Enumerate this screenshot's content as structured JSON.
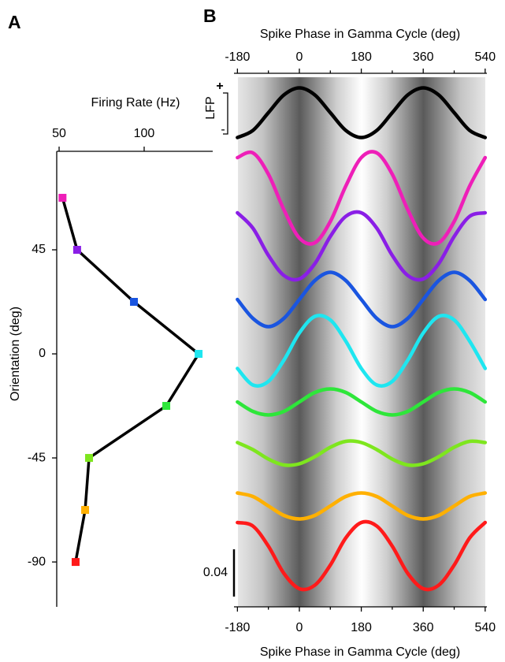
{
  "chart_data": [
    {
      "type": "line",
      "panel_label": "A",
      "xlabel": "Firing Rate (Hz)",
      "ylabel": "Orientation (deg)",
      "x": [
        52,
        60.6,
        94,
        132,
        113,
        67.6,
        65.3,
        59.7
      ],
      "values": [
        67.5,
        45,
        22.5,
        0,
        -22.5,
        -45,
        -67.5,
        -90
      ],
      "color": "#000000",
      "marker_colors": [
        "#ee1fb8",
        "#8a1ee6",
        "#1a55e0",
        "#1ee6f0",
        "#2ee63a",
        "#7ee61e",
        "#ffb000",
        "#ff1a1a"
      ],
      "xlim": [
        48.6,
        140.3
      ],
      "xticks": [
        50,
        100
      ],
      "ylim": [
        -109.4,
        87.6
      ],
      "yticks": [
        45,
        0,
        -45,
        -90
      ]
    },
    {
      "type": "waves",
      "panel_label": "B",
      "xlabel": "Spike Phase in Gamma Cycle (deg)",
      "lfp_label": "LFP",
      "lfp_plus": "+",
      "lfp_minus": "-",
      "x": [
        -180,
        -135,
        -90,
        -45,
        0,
        45,
        90,
        135,
        180,
        225,
        270,
        315,
        360,
        405,
        450,
        495,
        540
      ],
      "xlim": [
        -190,
        545
      ],
      "xticks": [
        -180,
        0,
        180,
        360,
        540
      ],
      "xminorticks": [
        -90,
        90,
        270,
        450
      ],
      "scalebar": 0.04,
      "series": [
        {
          "color": "#000000",
          "values": [
            -0.021,
            -0.015,
            0,
            0.015,
            0.021,
            0.015,
            0,
            -0.015,
            -0.021,
            -0.015,
            0,
            0.015,
            0.021,
            0.015,
            0,
            -0.015,
            -0.021
          ]
        },
        {
          "color": "#ee1fb8",
          "values": [
            0.034,
            0.038,
            0.02,
            -0.01,
            -0.034,
            -0.038,
            -0.02,
            0.01,
            0.034,
            0.038,
            0.02,
            -0.01,
            -0.034,
            -0.038,
            -0.02,
            0.01,
            0.034
          ]
        },
        {
          "color": "#8a1ee6",
          "values": [
            0.028,
            0.015,
            -0.008,
            -0.025,
            -0.028,
            -0.015,
            0.008,
            0.025,
            0.028,
            0.015,
            -0.008,
            -0.025,
            -0.028,
            -0.015,
            0.008,
            0.025,
            0.028
          ]
        },
        {
          "color": "#1a55e0",
          "values": [
            0,
            -0.016,
            -0.023,
            -0.016,
            0,
            0.016,
            0.023,
            0.016,
            0,
            -0.016,
            -0.023,
            -0.016,
            0,
            0.016,
            0.023,
            0.016,
            0
          ]
        },
        {
          "color": "#1ee6f0",
          "values": [
            -0.015,
            -0.029,
            -0.026,
            -0.008,
            0.015,
            0.029,
            0.026,
            0.008,
            -0.015,
            -0.029,
            -0.026,
            -0.008,
            0.015,
            0.029,
            0.026,
            0.008,
            -0.015
          ]
        },
        {
          "color": "#2ee63a",
          "values": [
            0,
            -0.008,
            -0.011,
            -0.008,
            0,
            0.008,
            0.011,
            0.008,
            0,
            -0.008,
            -0.011,
            -0.008,
            0,
            0.008,
            0.011,
            0.008,
            0
          ]
        },
        {
          "color": "#7ee61e",
          "values": [
            0.009,
            0.003,
            -0.005,
            -0.01,
            -0.009,
            -0.003,
            0.005,
            0.01,
            0.009,
            0.003,
            -0.005,
            -0.01,
            -0.009,
            -0.003,
            0.005,
            0.01,
            0.009
          ]
        },
        {
          "color": "#ffb000",
          "values": [
            0.011,
            0.008,
            0,
            -0.008,
            -0.011,
            -0.008,
            0,
            0.008,
            0.011,
            0.008,
            0,
            -0.008,
            -0.011,
            -0.008,
            0,
            0.008,
            0.011
          ]
        },
        {
          "color": "#ff1a1a",
          "values": [
            0.028,
            0.025,
            0.008,
            -0.015,
            -0.028,
            -0.025,
            -0.008,
            0.015,
            0.028,
            0.025,
            0.008,
            -0.015,
            -0.028,
            -0.025,
            -0.008,
            0.015,
            0.028
          ]
        }
      ]
    }
  ]
}
